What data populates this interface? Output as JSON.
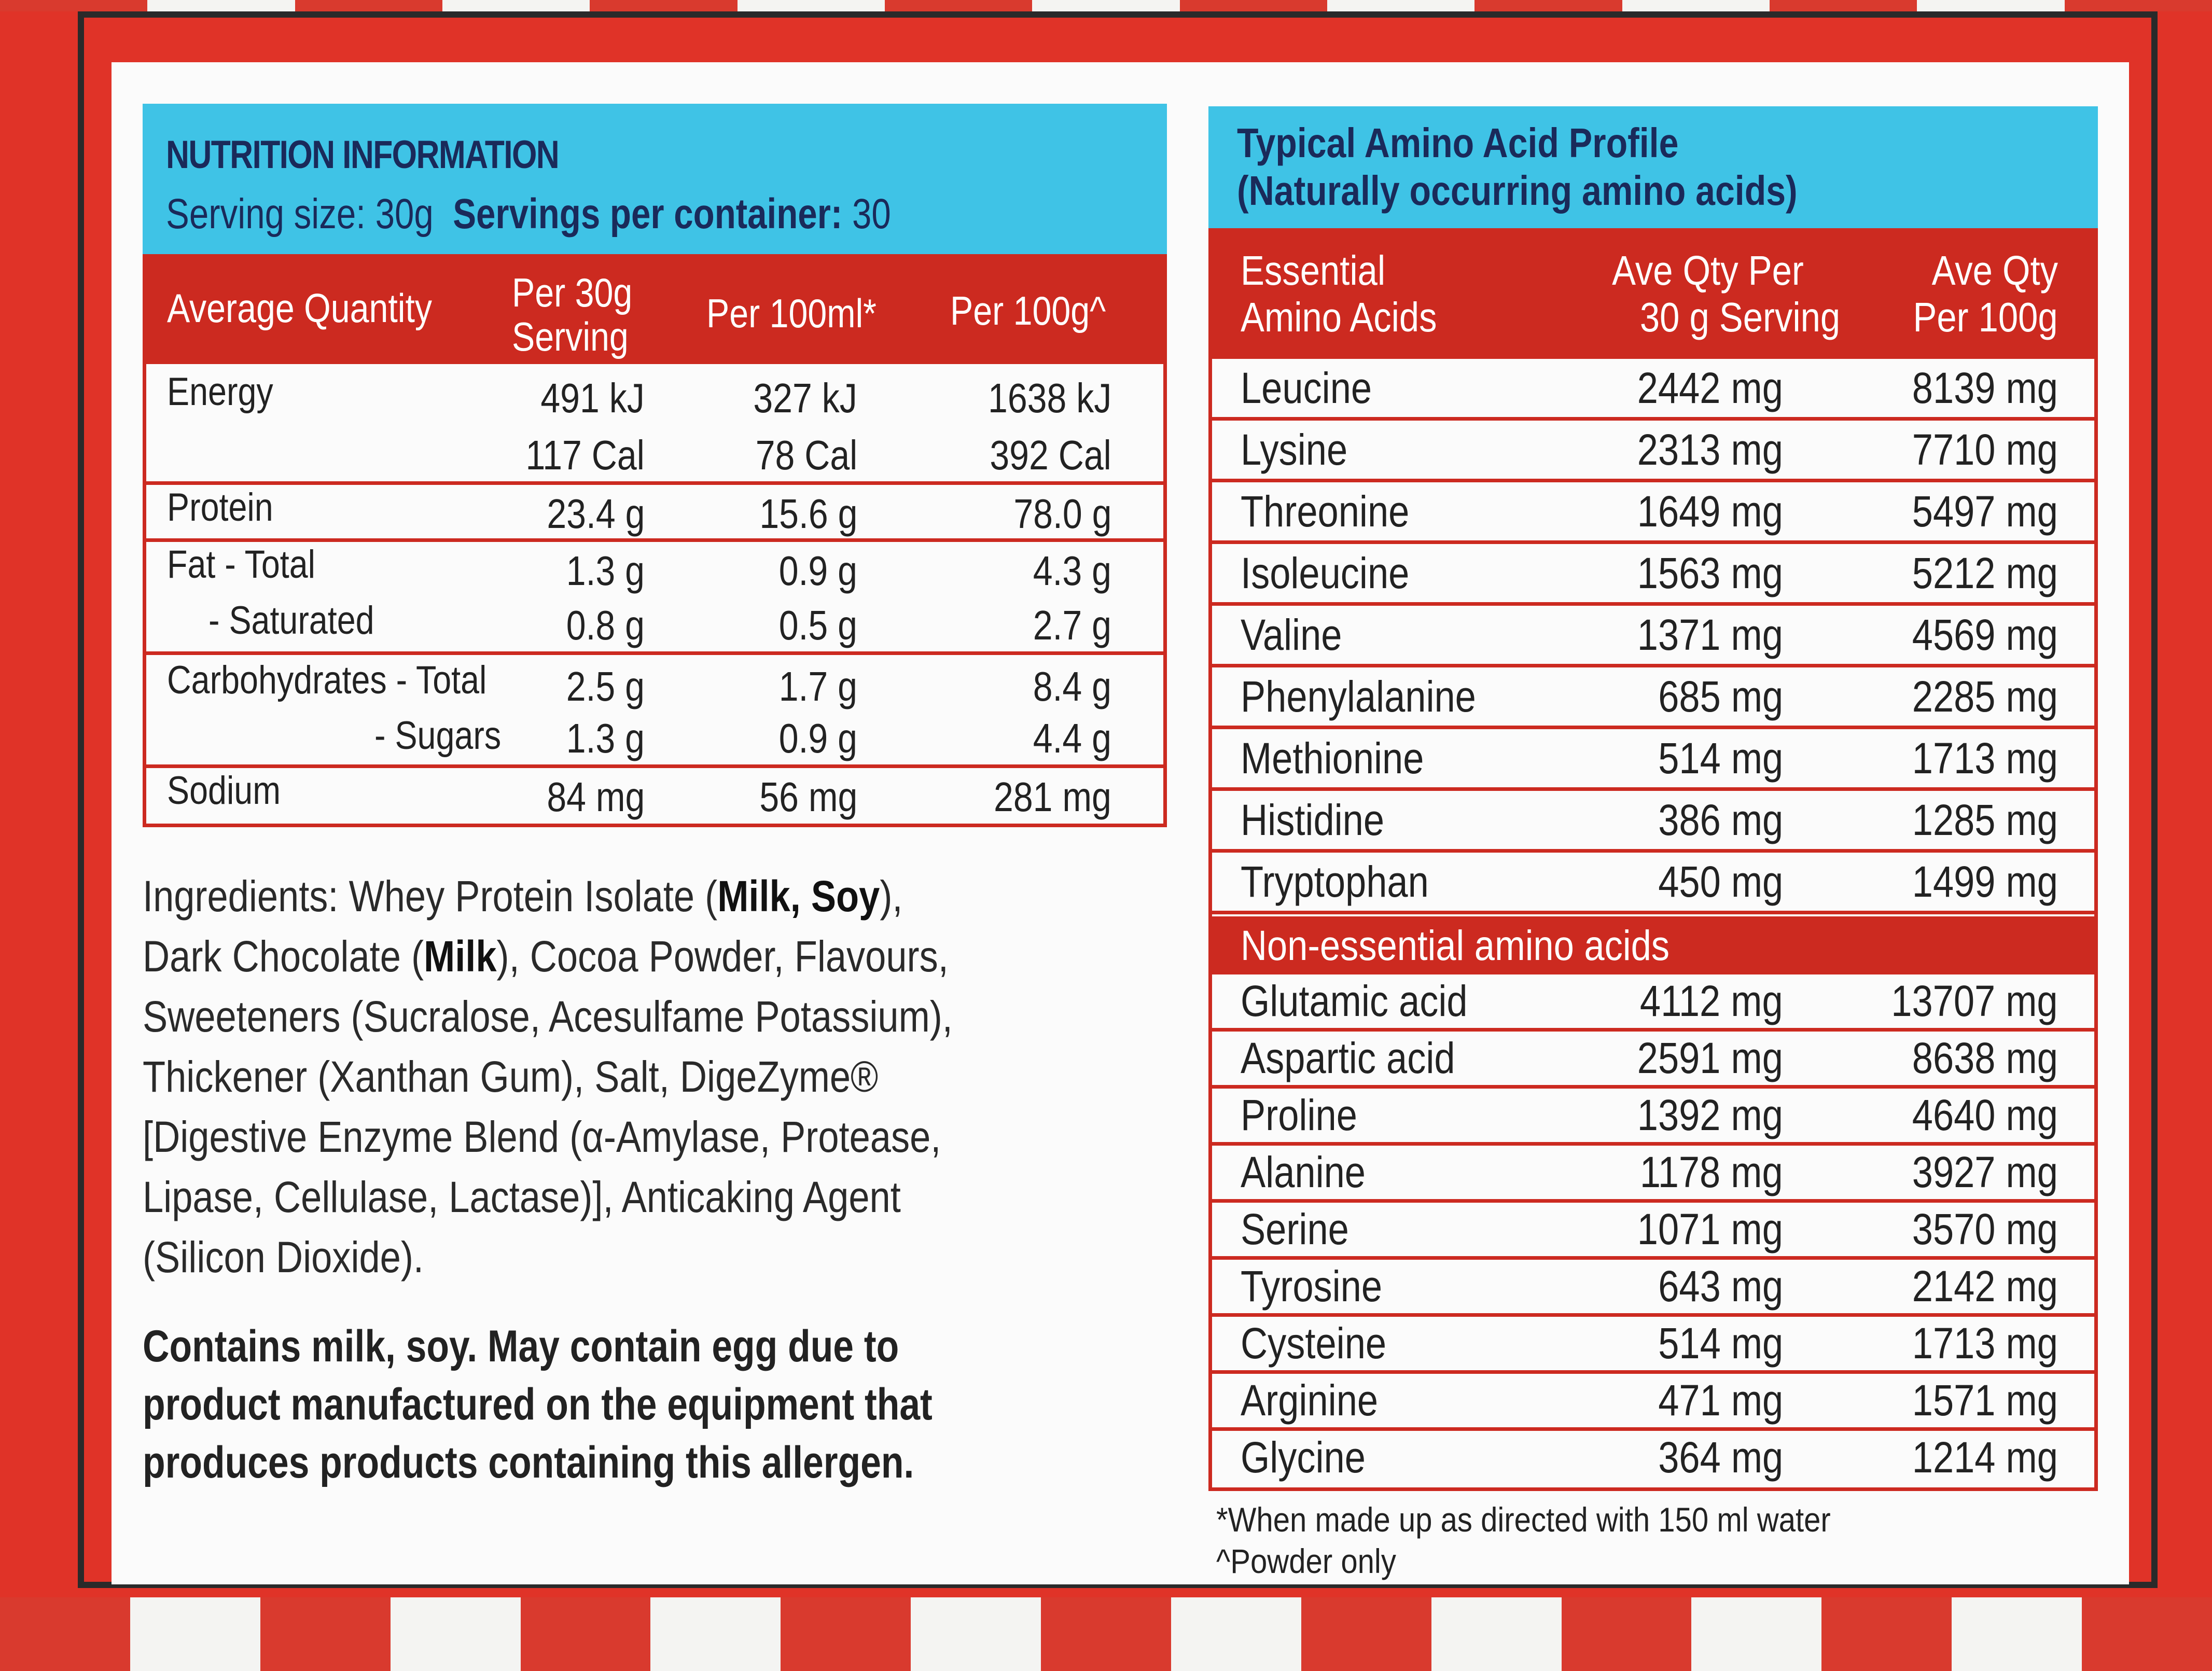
{
  "nutrition": {
    "title": "NUTRITION INFORMATION",
    "serving_size_label": "Serving size:",
    "serving_size_value": "30g",
    "servings_label": "Servings per container:",
    "servings_value": "30",
    "columns": {
      "quantity": "Average Quantity",
      "per30_line1": "Per 30g",
      "per30_line2": "Serving",
      "per100ml": "Per 100ml*",
      "per100g": "Per 100g^"
    },
    "rows": {
      "energy": {
        "label": "Energy",
        "kj": [
          "491 kJ",
          "327 kJ",
          "1638 kJ"
        ],
        "cal": [
          "117 Cal",
          "78 Cal",
          "392 Cal"
        ]
      },
      "protein": {
        "label": "Protein",
        "values": [
          "23.4 g",
          "15.6 g",
          "78.0 g"
        ]
      },
      "fat_total": {
        "label": "Fat -  Total",
        "values": [
          "1.3 g",
          "0.9 g",
          "4.3 g"
        ]
      },
      "fat_saturated": {
        "label": "- Saturated",
        "values": [
          "0.8 g",
          "0.5 g",
          "2.7 g"
        ]
      },
      "carb_total": {
        "label": "Carbohydrates - Total",
        "values": [
          "2.5 g",
          "1.7 g",
          "8.4 g"
        ]
      },
      "carb_sugars": {
        "label": "- Sugars",
        "values": [
          "1.3 g",
          "0.9 g",
          "4.4 g"
        ]
      },
      "sodium": {
        "label": "Sodium",
        "values": [
          "84 mg",
          "56 mg",
          "281 mg"
        ]
      }
    }
  },
  "ingredients": {
    "l1_a": "Ingredients: Whey Protein Isolate (",
    "l1_b": "Milk, Soy",
    "l1_c": "),",
    "l2_a": "Dark Chocolate (",
    "l2_b": "Milk",
    "l2_c": "), Cocoa Powder, Flavours,",
    "l3": "Sweeteners (Sucralose, Acesulfame Potassium),",
    "l4": "Thickener (Xanthan Gum), Salt, DigeZyme®",
    "l5": "[Digestive Enzyme Blend (α-Amylase, Protease,",
    "l6": "Lipase, Cellulase, Lactase)], Anticaking Agent",
    "l7": "(Silicon Dioxide)."
  },
  "allergen": {
    "l1": "Contains milk, soy. May contain egg due to",
    "l2": "product manufactured on the equipment that",
    "l3": "produces products containing this allergen."
  },
  "amino": {
    "title_l1": "Typical Amino Acid Profile",
    "title_l2": "(Naturally occurring amino acids)",
    "col_name_l1": "Essential",
    "col_name_l2": "Amino Acids",
    "col_v1_l1": "Ave Qty Per",
    "col_v1_l2": "30 g Serving",
    "col_v2_l1": "Ave Qty",
    "col_v2_l2": "Per 100g",
    "essential": [
      {
        "name": "Leucine",
        "v1": "2442 mg",
        "v2": "8139 mg"
      },
      {
        "name": "Lysine",
        "v1": "2313 mg",
        "v2": "7710 mg"
      },
      {
        "name": "Threonine",
        "v1": "1649 mg",
        "v2": "5497 mg"
      },
      {
        "name": "Isoleucine",
        "v1": "1563 mg",
        "v2": "5212 mg"
      },
      {
        "name": "Valine",
        "v1": "1371 mg",
        "v2": "4569 mg"
      },
      {
        "name": "Phenylalanine",
        "v1": "685 mg",
        "v2": "2285 mg"
      },
      {
        "name": "Methionine",
        "v1": "514 mg",
        "v2": "1713 mg"
      },
      {
        "name": "Histidine",
        "v1": "386 mg",
        "v2": "1285 mg"
      },
      {
        "name": "Tryptophan",
        "v1": "450 mg",
        "v2": "1499 mg"
      }
    ],
    "nonessential_label": "Non-essential amino acids",
    "nonessential": [
      {
        "name": "Glutamic acid",
        "v1": "4112 mg",
        "v2": "13707 mg"
      },
      {
        "name": "Aspartic acid",
        "v1": "2591 mg",
        "v2": "8638 mg"
      },
      {
        "name": "Proline",
        "v1": "1392 mg",
        "v2": "4640 mg"
      },
      {
        "name": "Alanine",
        "v1": "1178 mg",
        "v2": "3927 mg"
      },
      {
        "name": "Serine",
        "v1": "1071 mg",
        "v2": "3570 mg"
      },
      {
        "name": "Tyrosine",
        "v1": "643 mg",
        "v2": "2142 mg"
      },
      {
        "name": "Cysteine",
        "v1": "514 mg",
        "v2": "1713 mg"
      },
      {
        "name": "Arginine",
        "v1": "471 mg",
        "v2": "1571 mg"
      },
      {
        "name": "Glycine",
        "v1": "364 mg",
        "v2": "1214 mg"
      }
    ]
  },
  "footnotes": {
    "l1": "*When made up as directed with 150 ml water",
    "l2": "^Powder only"
  }
}
